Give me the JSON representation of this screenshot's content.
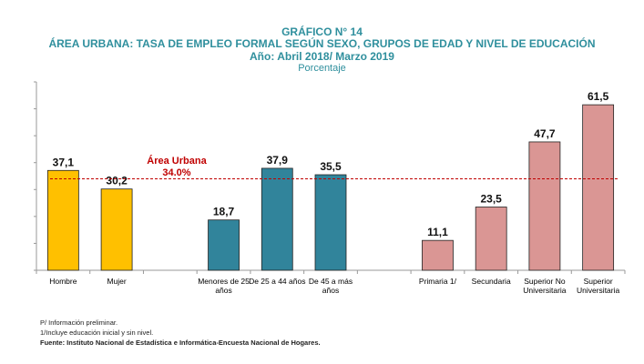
{
  "chart_data": {
    "type": "bar",
    "title": "GRÁFICO N° 14",
    "subtitle": "ÁREA URBANA: TASA DE EMPLEO FORMAL SEGÚN SEXO, GRUPOS DE EDAD Y NIVEL DE EDUCACIÓN",
    "period": "Año: Abril 2018/ Marzo 2019",
    "ylabel": "Porcentaje",
    "ylim": [
      0,
      70
    ],
    "categories": [
      [
        "Hombre"
      ],
      [
        "Mujer"
      ],
      [],
      [
        "Menores de 25",
        "años"
      ],
      [
        "De 25 a 44 años"
      ],
      [
        "De 45 a más",
        "años"
      ],
      [],
      [
        "Primaria  1/"
      ],
      [
        "Secundaria"
      ],
      [
        "Superior No",
        "Universitaria"
      ],
      [
        "Superior",
        "Universitaria"
      ]
    ],
    "values": [
      37.1,
      30.2,
      null,
      18.7,
      37.9,
      35.5,
      null,
      11.1,
      23.5,
      47.7,
      61.5
    ],
    "labels": [
      "37,1",
      "30,2",
      "",
      "18,7",
      "37,9",
      "35,5",
      "",
      "11,1",
      "23,5",
      "47,7",
      "61,5"
    ],
    "groups": [
      "sexo",
      "sexo",
      "",
      "edad",
      "edad",
      "edad",
      "",
      "educacion",
      "educacion",
      "educacion",
      "educacion"
    ],
    "colors": {
      "sexo": "#ffc000",
      "edad": "#31849b",
      "educacion": "#da9694"
    },
    "reference": {
      "name": "Área Urbana",
      "value": 34.0,
      "label": "34.0%",
      "color": "#c00000"
    }
  },
  "notes": [
    "P/ Información preliminar.",
    "1/Incluye educación inicial y sin nivel.",
    "Fuente: Instituto Nacional de Estadística e Informática-Encuesta Nacional de Hogares."
  ]
}
